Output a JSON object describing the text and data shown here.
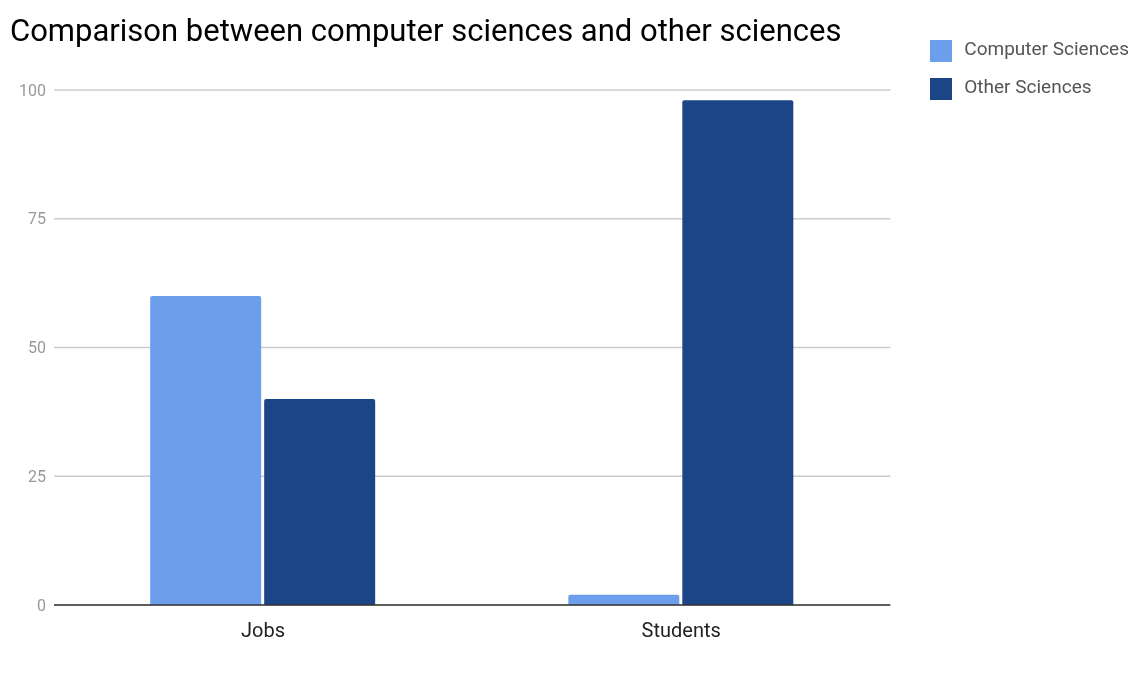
{
  "chart_data": {
    "type": "bar",
    "title": "Comparison between computer sciences and other sciences",
    "categories": [
      "Jobs",
      "Students"
    ],
    "series": [
      {
        "name": "Computer Sciences",
        "color": "#6d9eeb",
        "values": [
          60,
          2
        ]
      },
      {
        "name": "Other Sciences",
        "color": "#1c4587",
        "values": [
          40,
          98
        ]
      }
    ],
    "ylim": [
      0,
      100
    ],
    "yticks": [
      0,
      25,
      50,
      75,
      100
    ],
    "grid": "y",
    "legend": "top right"
  }
}
